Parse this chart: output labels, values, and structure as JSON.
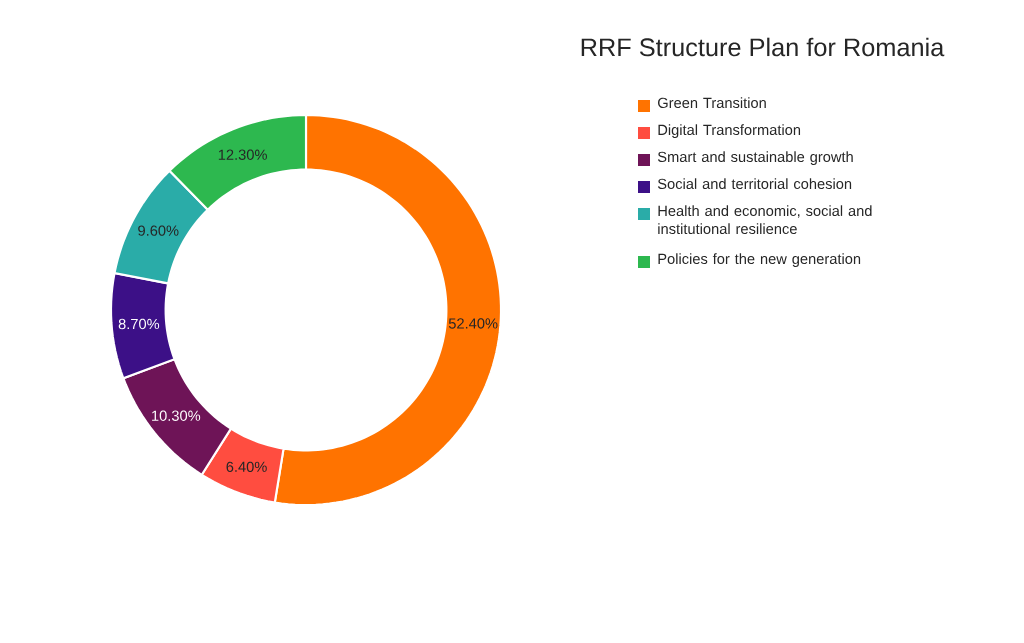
{
  "chart_data": {
    "type": "donut",
    "title": "RRF Structure Plan for Romania",
    "categories": [
      "Green Transition",
      "Digital Transformation",
      "Smart and sustainable growth",
      "Social and territorial cohesion",
      "Health and economic, social and institutional resilience",
      "Policies for the new generation"
    ],
    "values": [
      52.4,
      6.4,
      10.3,
      8.7,
      9.6,
      12.3
    ],
    "value_labels": [
      "52.40%",
      "6.40%",
      "10.30%",
      "8.70%",
      "9.60%",
      "12.30%"
    ],
    "colors": [
      "#ff7300",
      "#ff4d40",
      "#6e1457",
      "#3c1087",
      "#2aaca8",
      "#2db84f"
    ],
    "legend": "right"
  }
}
